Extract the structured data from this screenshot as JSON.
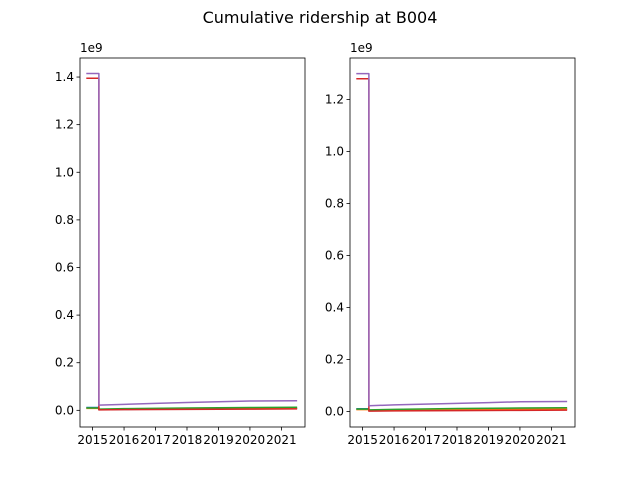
{
  "figure": {
    "title": "Cumulative ridership at B004"
  },
  "chart_data": [
    {
      "type": "line",
      "xlabel": "",
      "ylabel": "",
      "offset_text": "1e9",
      "xlim": [
        2014.6,
        2021.75
      ],
      "ylim": [
        -0.07,
        1.48
      ],
      "xticks": [
        2015,
        2016,
        2017,
        2018,
        2019,
        2020,
        2021
      ],
      "yticks": [
        0.0,
        0.2,
        0.4,
        0.6,
        0.8,
        1.0,
        1.2,
        1.4
      ],
      "ytick_labels": [
        "0.0",
        "0.2",
        "0.4",
        "0.6",
        "0.8",
        "1.0",
        "1.2",
        "1.4"
      ],
      "grid": false,
      "series": [
        {
          "color": "#1f77b4",
          "x": [
            2014.8,
            2015.2,
            2015.2,
            2016,
            2018,
            2020,
            2021.5
          ],
          "y": [
            0.012,
            0.012,
            0.003,
            0.004,
            0.006,
            0.008,
            0.009
          ]
        },
        {
          "color": "#ff7f0e",
          "x": [
            2014.8,
            2015.2,
            2015.2,
            2016,
            2018,
            2020,
            2021.5
          ],
          "y": [
            0.008,
            0.008,
            0.004,
            0.005,
            0.007,
            0.008,
            0.009
          ]
        },
        {
          "color": "#2ca02c",
          "x": [
            2014.8,
            2015.2,
            2015.2,
            2016,
            2018,
            2020,
            2021.5
          ],
          "y": [
            0.01,
            0.01,
            0.005,
            0.007,
            0.01,
            0.012,
            0.013
          ]
        },
        {
          "color": "#d62728",
          "x": [
            2014.8,
            2015.2,
            2015.2,
            2016,
            2018,
            2020,
            2021.5
          ],
          "y": [
            1.395,
            1.395,
            0.002,
            0.003,
            0.004,
            0.005,
            0.006
          ]
        },
        {
          "color": "#9467bd",
          "x": [
            2014.8,
            2015.2,
            2015.2,
            2016,
            2017,
            2018,
            2019,
            2020,
            2021.5
          ],
          "y": [
            1.415,
            1.415,
            0.022,
            0.025,
            0.029,
            0.033,
            0.036,
            0.039,
            0.04
          ]
        }
      ]
    },
    {
      "type": "line",
      "xlabel": "",
      "ylabel": "",
      "offset_text": "1e9",
      "xlim": [
        2014.6,
        2021.75
      ],
      "ylim": [
        -0.06,
        1.36
      ],
      "xticks": [
        2015,
        2016,
        2017,
        2018,
        2019,
        2020,
        2021
      ],
      "yticks": [
        0.0,
        0.2,
        0.4,
        0.6,
        0.8,
        1.0,
        1.2
      ],
      "ytick_labels": [
        "0.0",
        "0.2",
        "0.4",
        "0.6",
        "0.8",
        "1.0",
        "1.2"
      ],
      "grid": false,
      "series": [
        {
          "color": "#1f77b4",
          "x": [
            2014.8,
            2015.2,
            2015.2,
            2016,
            2018,
            2020,
            2021.5
          ],
          "y": [
            0.01,
            0.01,
            0.003,
            0.004,
            0.006,
            0.008,
            0.009
          ]
        },
        {
          "color": "#ff7f0e",
          "x": [
            2014.8,
            2015.2,
            2015.2,
            2016,
            2018,
            2020,
            2021.5
          ],
          "y": [
            0.007,
            0.007,
            0.004,
            0.005,
            0.007,
            0.008,
            0.009
          ]
        },
        {
          "color": "#2ca02c",
          "x": [
            2014.8,
            2015.2,
            2015.2,
            2016,
            2018,
            2020,
            2021.5
          ],
          "y": [
            0.009,
            0.009,
            0.006,
            0.008,
            0.011,
            0.013,
            0.014
          ]
        },
        {
          "color": "#d62728",
          "x": [
            2014.8,
            2015.2,
            2015.2,
            2016,
            2018,
            2020,
            2021.5
          ],
          "y": [
            1.28,
            1.28,
            0.001,
            0.002,
            0.003,
            0.004,
            0.005
          ]
        },
        {
          "color": "#9467bd",
          "x": [
            2014.8,
            2015.2,
            2015.2,
            2016,
            2017,
            2018,
            2019,
            2020,
            2021.5
          ],
          "y": [
            1.3,
            1.3,
            0.022,
            0.025,
            0.028,
            0.031,
            0.034,
            0.037,
            0.038
          ]
        }
      ]
    }
  ]
}
